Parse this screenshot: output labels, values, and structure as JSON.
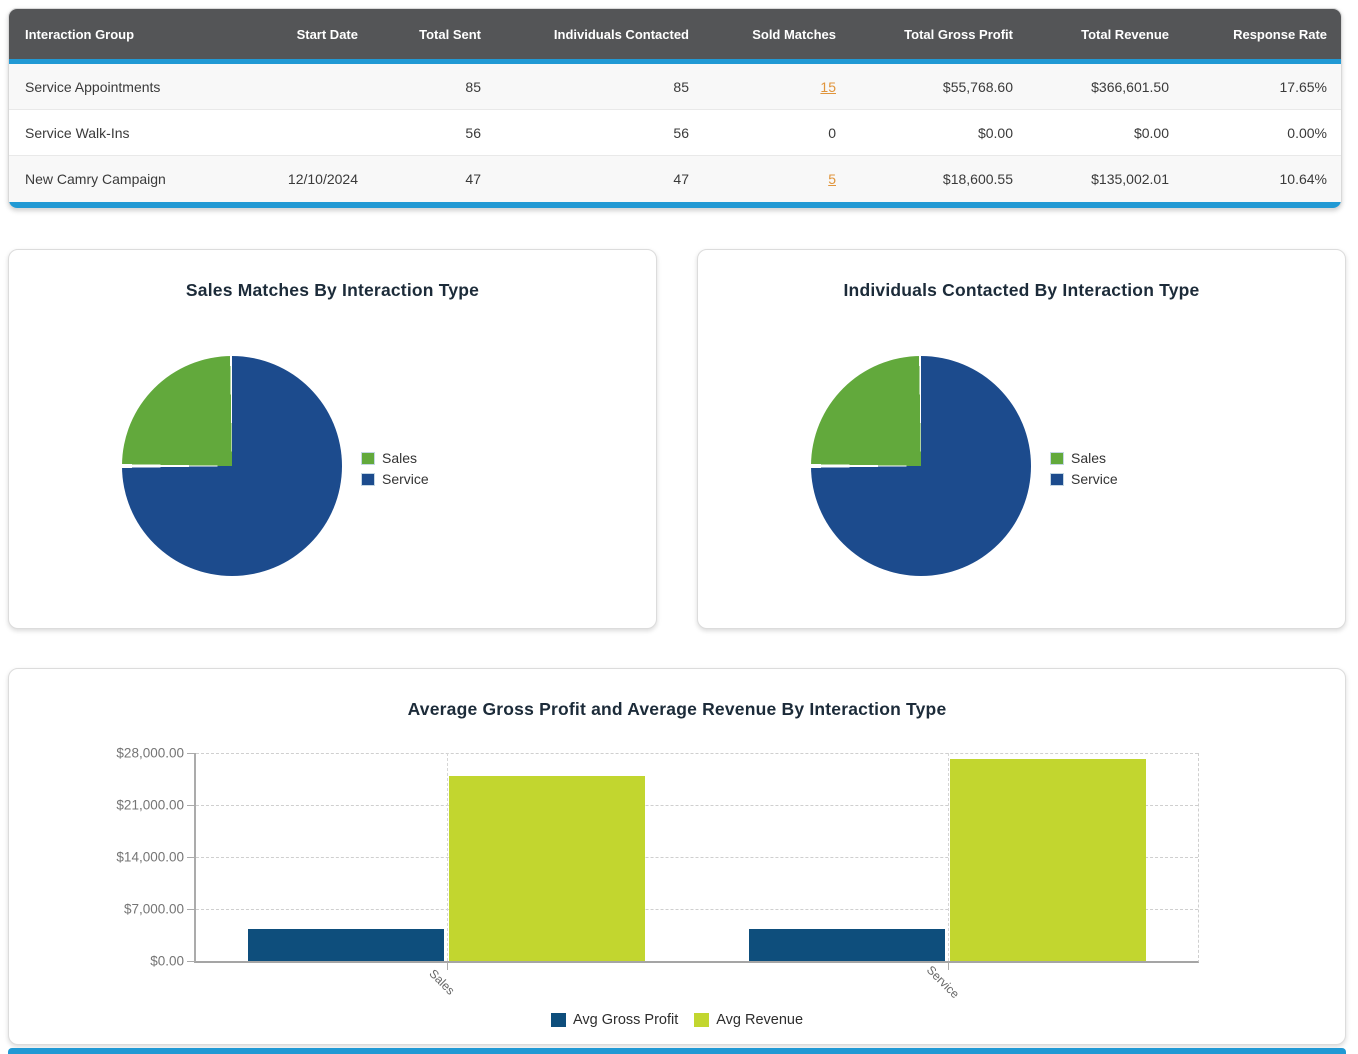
{
  "colors": {
    "accent_blue": "#2199d4",
    "header_gray": "#545557",
    "link_orange": "#e0953c",
    "pie_green": "#62a93c",
    "pie_blue": "#1c4b8d",
    "bar_navy": "#0e4e7c",
    "bar_lime": "#c2d62f"
  },
  "table": {
    "columns": [
      "Interaction Group",
      "Start Date",
      "Total Sent",
      "Individuals Contacted",
      "Sold Matches",
      "Total Gross Profit",
      "Total Revenue",
      "Response Rate"
    ],
    "rows": [
      {
        "group": "Service Appointments",
        "start_date": "",
        "total_sent": "85",
        "individuals_contacted": "85",
        "sold_matches": "15",
        "total_gross_profit": "$55,768.60",
        "total_revenue": "$366,601.50",
        "response_rate": "17.65%"
      },
      {
        "group": "Service Walk-Ins",
        "start_date": "",
        "total_sent": "56",
        "individuals_contacted": "56",
        "sold_matches": "0",
        "total_gross_profit": "$0.00",
        "total_revenue": "$0.00",
        "response_rate": "0.00%"
      },
      {
        "group": "New Camry Campaign",
        "start_date": "12/10/2024",
        "total_sent": "47",
        "individuals_contacted": "47",
        "sold_matches": "5",
        "total_gross_profit": "$18,600.55",
        "total_revenue": "$135,002.01",
        "response_rate": "10.64%"
      }
    ]
  },
  "chart_data": [
    {
      "type": "pie",
      "title": "Sales Matches By Interaction Type",
      "labels": [
        "Sales",
        "Service"
      ],
      "values": [
        5,
        15
      ],
      "colors": [
        "#62a93c",
        "#1c4b8d"
      ],
      "legend_position": "right"
    },
    {
      "type": "pie",
      "title": "Individuals Contacted By Interaction Type",
      "labels": [
        "Sales",
        "Service"
      ],
      "values": [
        47,
        141
      ],
      "colors": [
        "#62a93c",
        "#1c4b8d"
      ],
      "legend_position": "right"
    },
    {
      "type": "bar",
      "title": "Average Gross Profit and Average Revenue By Interaction Type",
      "categories": [
        "Sales",
        "Service"
      ],
      "series": [
        {
          "name": "Avg Gross Profit",
          "values": [
            4300,
            4300
          ],
          "color": "#0e4e7c"
        },
        {
          "name": "Avg Revenue",
          "values": [
            24900,
            27250
          ],
          "color": "#c2d62f"
        }
      ],
      "ylim": [
        0,
        28000
      ],
      "ytick_labels": [
        "$28,000.00",
        "$21,000.00",
        "$14,000.00",
        "$7,000.00",
        "$0.00"
      ],
      "grid": true,
      "legend_position": "bottom"
    }
  ]
}
